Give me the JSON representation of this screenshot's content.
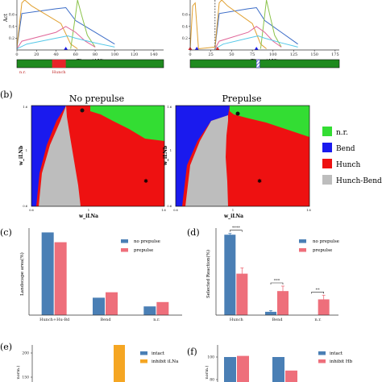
{
  "panel_labels": {
    "b": "(b)",
    "c": "(c)",
    "d": "(d)",
    "e": "(e)",
    "f": "(f)"
  },
  "colors": {
    "nr": "#33dd33",
    "bend": "#1a1aee",
    "hunch": "#ee1111",
    "hunch_bend": "#bdbdbd",
    "bar_blue": "#4a7fb5",
    "bar_pink": "#ee6f7b",
    "bar_orange": "#f5a623",
    "timeline_green": "#1f8a1f",
    "timeline_red": "#e8232a"
  },
  "chart_data": [
    {
      "id": "a-left",
      "type": "line",
      "ylabel": "Act",
      "xlabel": "Time (AU)",
      "xticks": [
        0,
        20,
        40,
        60,
        80,
        100,
        120,
        140
      ],
      "yticks": [
        0.2,
        0.4,
        0.6
      ],
      "xlim": [
        0,
        150
      ],
      "ylim": [
        0,
        0.85
      ],
      "series": [
        {
          "color": "#3a6bc7",
          "x": [
            0,
            5,
            40,
            50,
            60,
            80,
            100
          ],
          "y": [
            0.05,
            0.62,
            0.7,
            0.72,
            0.5,
            0.3,
            0.1
          ]
        },
        {
          "color": "#e0a030",
          "x": [
            0,
            5,
            8,
            15,
            45,
            55,
            62
          ],
          "y": [
            0.05,
            0.8,
            0.85,
            0.75,
            0.45,
            0.1,
            0.02
          ]
        },
        {
          "color": "#8bc34a",
          "x": [
            55,
            60,
            62,
            66,
            72,
            80
          ],
          "y": [
            0.02,
            0.6,
            0.85,
            0.6,
            0.25,
            0.05
          ]
        },
        {
          "color": "#e06699",
          "x": [
            0,
            5,
            40,
            50,
            60,
            70,
            80
          ],
          "y": [
            0.02,
            0.15,
            0.3,
            0.4,
            0.3,
            0.15,
            0.05
          ]
        },
        {
          "color": "#55c8e8",
          "x": [
            0,
            10,
            40,
            52,
            60,
            80,
            100
          ],
          "y": [
            0.02,
            0.1,
            0.2,
            0.24,
            0.2,
            0.12,
            0.05
          ]
        }
      ],
      "markers": [
        {
          "x": 50,
          "symbol": "triangle",
          "color": "#1a1aee"
        }
      ]
    },
    {
      "id": "a-right",
      "type": "line",
      "xlabel": "Time (AU)",
      "xticks": [
        0,
        25,
        50,
        75,
        100,
        125,
        150,
        175
      ],
      "yticks": [
        0.2,
        0.4,
        0.6
      ],
      "xlim": [
        0,
        180
      ],
      "ylim": [
        0,
        0.85
      ],
      "prepulse_x": 30,
      "series": [
        {
          "color": "#3a6bc7",
          "x": [
            30,
            35,
            70,
            80,
            90,
            110,
            130
          ],
          "y": [
            0.05,
            0.62,
            0.7,
            0.72,
            0.5,
            0.3,
            0.1
          ]
        },
        {
          "color": "#e0a030",
          "x": [
            0,
            3,
            6,
            10,
            30,
            35,
            38,
            45,
            75,
            85,
            92
          ],
          "y": [
            0.02,
            0.75,
            0.8,
            0.02,
            0.05,
            0.8,
            0.85,
            0.75,
            0.45,
            0.1,
            0.02
          ]
        },
        {
          "color": "#8bc34a",
          "x": [
            85,
            90,
            92,
            96,
            102,
            110
          ],
          "y": [
            0.02,
            0.6,
            0.85,
            0.6,
            0.25,
            0.05
          ]
        },
        {
          "color": "#e06699",
          "x": [
            30,
            35,
            70,
            80,
            90,
            100,
            110
          ],
          "y": [
            0.02,
            0.15,
            0.3,
            0.4,
            0.3,
            0.15,
            0.05
          ]
        },
        {
          "color": "#55c8e8",
          "x": [
            30,
            40,
            70,
            82,
            90,
            110,
            130
          ],
          "y": [
            0.02,
            0.1,
            0.2,
            0.24,
            0.2,
            0.12,
            0.05
          ]
        }
      ],
      "markers": [
        {
          "x": 0,
          "symbol": "triangle",
          "color": "#e8232a"
        },
        {
          "x": 8,
          "symbol": "triangle",
          "color": "#1a1aee"
        },
        {
          "x": 33,
          "symbol": "triangle",
          "color": "#e8232a"
        },
        {
          "x": 80,
          "symbol": "triangle",
          "color": "#1a1aee"
        }
      ]
    },
    {
      "id": "a-timelines",
      "type": "timeline",
      "left": {
        "label_start": "n.r.",
        "label_event": "Hunch",
        "event": [
          36,
          50
        ],
        "xlim": [
          0,
          150
        ]
      },
      "right": {
        "event_hatched": [
          80,
          84
        ],
        "xlim": [
          0,
          180
        ]
      }
    },
    {
      "id": "b",
      "type": "heatmap",
      "titles": [
        "No prepulse",
        "Prepulse"
      ],
      "xlabel": "w_iLNa",
      "ylabel": "w_iLNb",
      "xticks": [
        "0.6",
        "1",
        "1.6"
      ],
      "yticks": [
        "1.6",
        "1",
        "0.6"
      ],
      "legend": [
        "n.r.",
        "Bend",
        "Hunch",
        "Hunch-Bend"
      ],
      "points": [
        {
          "symbol": "dot"
        },
        {
          "symbol": "star"
        }
      ]
    },
    {
      "id": "c",
      "type": "bar",
      "categories": [
        "Hunch+Hu-Bd",
        "Bend",
        "n.r."
      ],
      "ylabel": "Landscape area(%)",
      "series": [
        {
          "name": "no prepulse",
          "values": [
            76,
            16,
            8
          ]
        },
        {
          "name": "prepulse",
          "values": [
            67,
            21,
            12
          ]
        }
      ],
      "ylim": [
        0,
        80
      ],
      "legend": "top-right"
    },
    {
      "id": "d",
      "type": "bar",
      "categories": [
        "Hunch",
        "Bend",
        "n.r."
      ],
      "ylabel": "Selected Reaction(%)",
      "series": [
        {
          "name": "no prepulse",
          "values": [
            97,
            4,
            0
          ],
          "err": [
            1.5,
            1.5,
            0
          ]
        },
        {
          "name": "prepulse",
          "values": [
            50,
            29,
            19
          ],
          "err": [
            7,
            6,
            5
          ]
        }
      ],
      "significance": [
        "****",
        "***",
        "**"
      ],
      "ylim": [
        0,
        105
      ],
      "legend": "top-right"
    },
    {
      "id": "e",
      "type": "bar",
      "ylabel": "norm.)",
      "yticks": [
        200,
        150
      ],
      "series": [
        {
          "name": "intact",
          "values": [
            100
          ]
        },
        {
          "name": "inhibit iLNa",
          "values": [
            235
          ]
        }
      ],
      "ylim": [
        0,
        260
      ]
    },
    {
      "id": "f",
      "type": "bar",
      "ylabel": "norm.)",
      "yticks": [
        100,
        80
      ],
      "series": [
        {
          "name": "intact",
          "values": [
            100,
            100
          ]
        },
        {
          "name": "inhibit Hb",
          "values": [
            101,
            88
          ]
        }
      ],
      "ylim": [
        0,
        120
      ]
    }
  ]
}
